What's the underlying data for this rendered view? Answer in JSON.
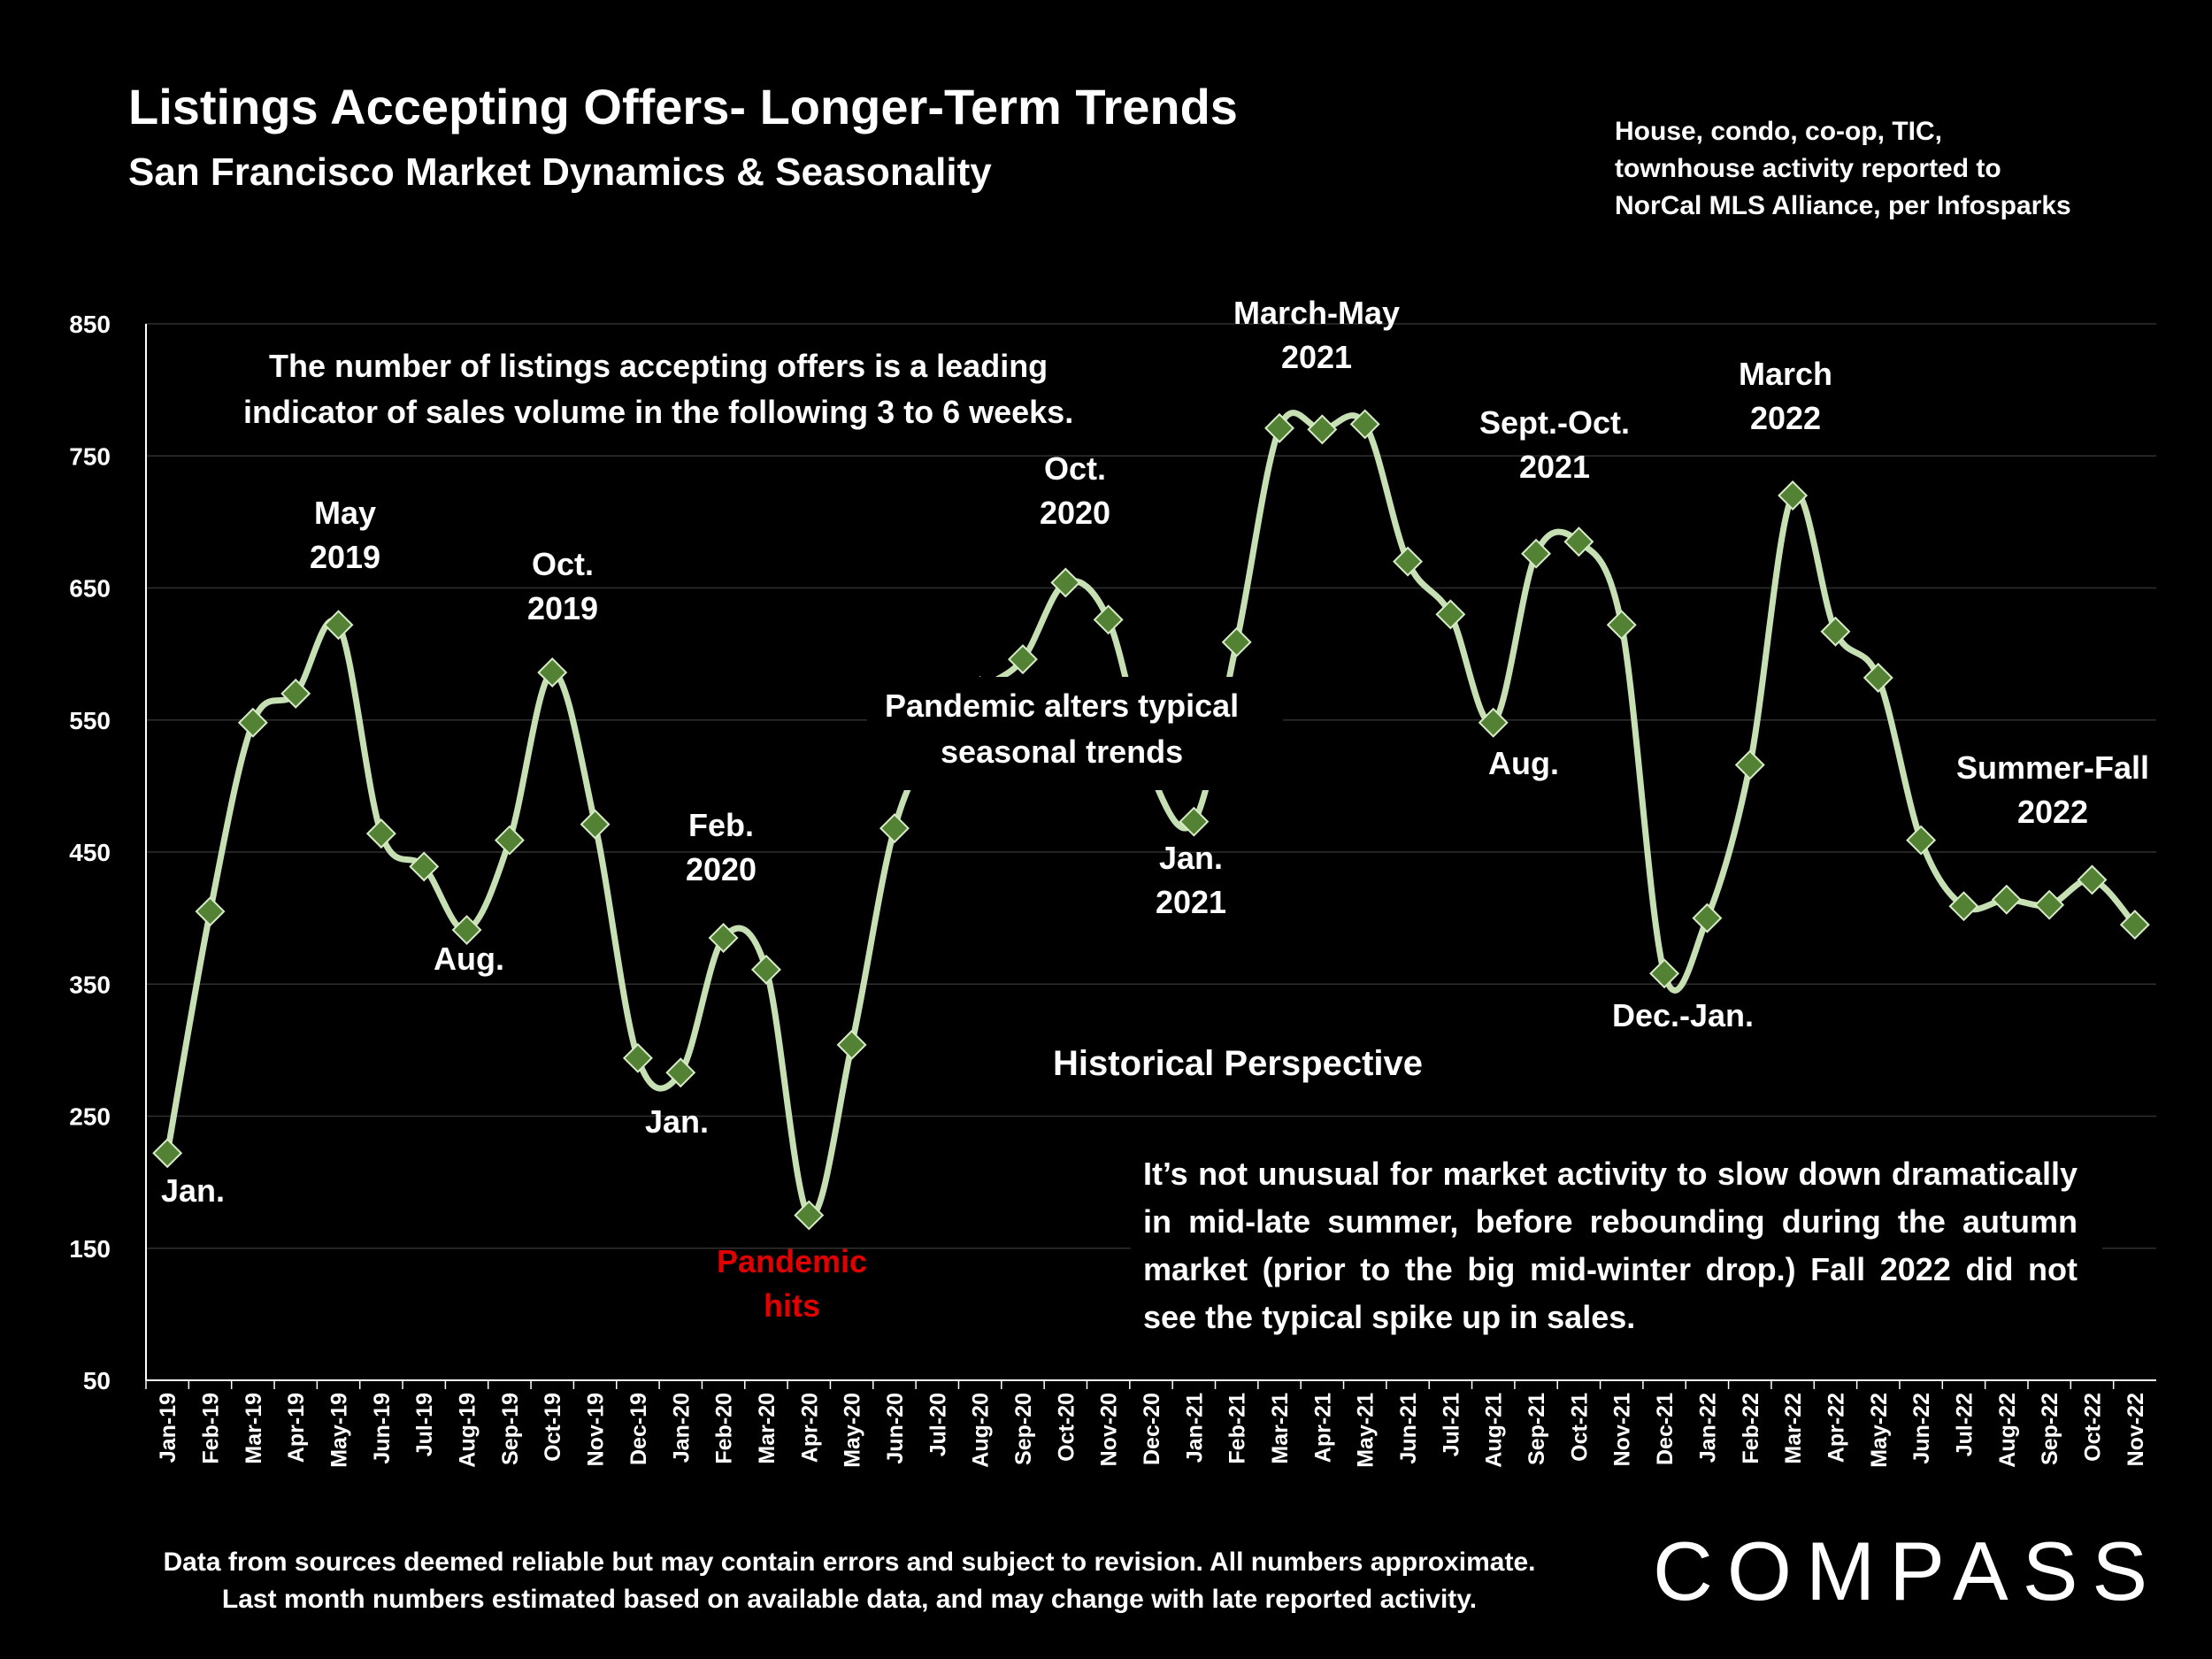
{
  "header": {
    "title": "Listings Accepting Offers- Longer-Term Trends",
    "subtitle": "San Francisco Market Dynamics & Seasonality",
    "source_lines": [
      "House, condo, co-op, TIC,",
      "townhouse activity reported to",
      "NorCal MLS Alliance, per Infosparks"
    ]
  },
  "notes": {
    "leading_indicator": [
      "The number of listings accepting offers is a leading",
      "indicator of sales volume in the following 3 to 6 weeks."
    ],
    "pandemic_alters": [
      "Pandemic alters typical",
      "seasonal trends"
    ],
    "historical_title": "Historical Perspective",
    "historical_text": "It’s not unusual for market activity to slow down dramatically in mid-late summer, before rebounding during the autumn market (prior to the big mid-winter drop.) Fall 2022 did not see the typical spike up in sales."
  },
  "footer": {
    "lines": [
      "Data from sources deemed reliable but may contain errors and subject to revision. All numbers approximate.",
      "Last month numbers estimated based on available data, and may change with late reported activity."
    ],
    "logo": "COMPASS"
  },
  "colors": {
    "line": "#c6e0b4",
    "marker": "#548235",
    "background": "#000000",
    "pandemic_text": "#e00000"
  },
  "chart_data": {
    "type": "line",
    "title": "Listings Accepting Offers- Longer-Term Trends",
    "ylim": [
      50,
      850
    ],
    "yticks": [
      50,
      150,
      250,
      350,
      450,
      550,
      650,
      750,
      850
    ],
    "grid": true,
    "categories": [
      "Jan-19",
      "Feb-19",
      "Mar-19",
      "Apr-19",
      "May-19",
      "Jun-19",
      "Jul-19",
      "Aug-19",
      "Sep-19",
      "Oct-19",
      "Nov-19",
      "Dec-19",
      "Jan-20",
      "Feb-20",
      "Mar-20",
      "Apr-20",
      "May-20",
      "Jun-20",
      "Jul-20",
      "Aug-20",
      "Sep-20",
      "Oct-20",
      "Nov-20",
      "Dec-20",
      "Jan-21",
      "Feb-21",
      "Mar-21",
      "Apr-21",
      "May-21",
      "Jun-21",
      "Jul-21",
      "Aug-21",
      "Sep-21",
      "Oct-21",
      "Nov-21",
      "Dec-21",
      "Jan-22",
      "Feb-22",
      "Mar-22",
      "Apr-22",
      "May-22",
      "Jun-22",
      "Jul-22",
      "Aug-22",
      "Sep-22",
      "Oct-22",
      "Nov-22"
    ],
    "values": [
      222,
      405,
      548,
      570,
      622,
      464,
      439,
      391,
      459,
      586,
      471,
      294,
      283,
      385,
      361,
      175,
      304,
      468,
      537,
      572,
      596,
      654,
      626,
      510,
      473,
      609,
      771,
      770,
      774,
      670,
      630,
      548,
      676,
      685,
      622,
      358,
      400,
      516,
      720,
      617,
      582,
      459,
      409,
      414,
      410,
      429,
      395
    ],
    "annotations": [
      {
        "text": [
          "Jan."
        ],
        "color": "white"
      },
      {
        "text": [
          "May",
          "2019"
        ],
        "color": "white"
      },
      {
        "text": [
          "Aug."
        ],
        "color": "white"
      },
      {
        "text": [
          "Oct.",
          "2019"
        ],
        "color": "white"
      },
      {
        "text": [
          "Jan."
        ],
        "color": "white"
      },
      {
        "text": [
          "Feb.",
          "2020"
        ],
        "color": "white"
      },
      {
        "text": [
          "Pandemic",
          "hits"
        ],
        "color": "red"
      },
      {
        "text": [
          "Oct.",
          "2020"
        ],
        "color": "white"
      },
      {
        "text": [
          "Jan.",
          "2021"
        ],
        "color": "white"
      },
      {
        "text": [
          "March-May",
          "2021"
        ],
        "color": "white"
      },
      {
        "text": [
          "Sept.-Oct.",
          "2021"
        ],
        "color": "white"
      },
      {
        "text": [
          "Aug."
        ],
        "color": "white"
      },
      {
        "text": [
          "Dec.-Jan."
        ],
        "color": "white"
      },
      {
        "text": [
          "March",
          "2022"
        ],
        "color": "white"
      },
      {
        "text": [
          "Summer-Fall",
          "2022"
        ],
        "color": "white"
      }
    ]
  }
}
